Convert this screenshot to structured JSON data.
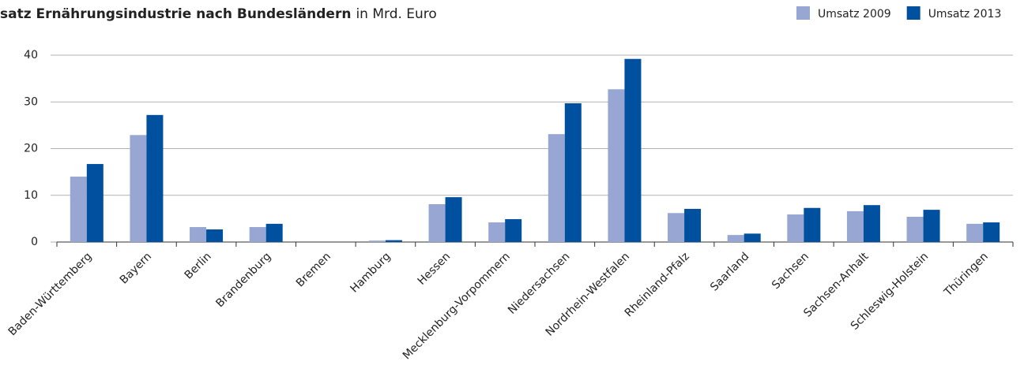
{
  "chart_data": {
    "type": "bar",
    "title": "satz Ernährungsindustrie nach Bundesländern",
    "subtitle": "in Mrd. Euro",
    "categories": [
      "Baden-Württemberg",
      "Bayern",
      "Berlin",
      "Brandenburg",
      "Bremen",
      "Hamburg",
      "Hessen",
      "Mecklenburg-Vorpommern",
      "Niedersachsen",
      "Nordrhein-Westfalen",
      "Rheinland-Pfalz",
      "Saarland",
      "Sachsen",
      "Sachsen-Anhalt",
      "Schleswig-Holstein",
      "Thüringen"
    ],
    "series": [
      {
        "name": "Umsatz 2009",
        "color": "#97a6d2",
        "values": [
          14.0,
          22.9,
          3.2,
          3.2,
          0,
          0.3,
          8.1,
          4.2,
          23.1,
          32.7,
          6.2,
          1.5,
          5.9,
          6.6,
          5.4,
          3.9
        ]
      },
      {
        "name": "Umsatz 2013",
        "color": "#0050a0",
        "values": [
          16.7,
          27.2,
          2.7,
          3.9,
          0,
          0.4,
          9.6,
          4.9,
          29.7,
          39.2,
          7.1,
          1.8,
          7.3,
          7.9,
          6.9,
          4.2
        ]
      }
    ],
    "ylim": [
      0,
      40
    ],
    "yticks": [
      0,
      10,
      20,
      30,
      40
    ],
    "grid": true,
    "legend": "top-right"
  }
}
